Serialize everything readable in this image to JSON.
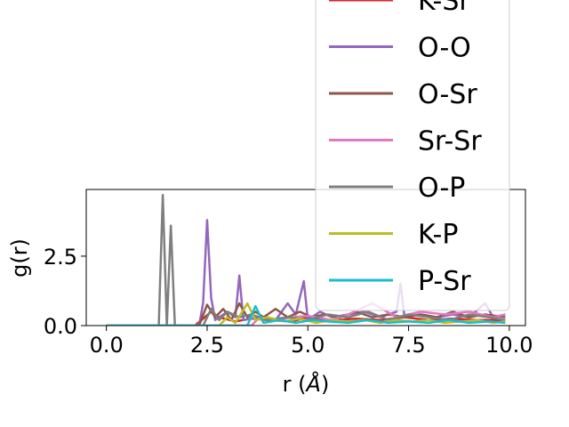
{
  "chart_data": {
    "type": "line",
    "title": "",
    "xlabel": "r (Å)",
    "ylabel": "g(r)",
    "xlim": [
      -0.5,
      10.4
    ],
    "ylim": [
      0,
      4.9
    ],
    "xticks": [
      0.0,
      2.5,
      5.0,
      7.5,
      10.0
    ],
    "xtick_labels": [
      "0.0",
      "2.5",
      "5.0",
      "7.5",
      "10.0"
    ],
    "yticks": [
      0.0,
      2.5
    ],
    "ytick_labels": [
      "0.0",
      "2.5"
    ],
    "grid": false,
    "legend_position": "upper-right",
    "series": [
      {
        "name": "K-Sr",
        "color": "#d62728",
        "x": [
          0.0,
          2.2,
          2.6,
          2.8,
          3.2,
          3.6,
          4.0,
          4.6,
          5.0,
          5.6,
          6.2,
          6.8,
          7.4,
          8.0,
          8.6,
          9.2,
          9.9
        ],
        "y": [
          0.0,
          0.0,
          0.5,
          0.3,
          0.15,
          0.25,
          0.2,
          0.15,
          0.3,
          0.2,
          0.25,
          0.2,
          0.3,
          0.2,
          0.25,
          0.2,
          0.2
        ]
      },
      {
        "name": "O-O",
        "color": "#9467bd",
        "x": [
          0.0,
          2.3,
          2.4,
          2.5,
          2.6,
          2.7,
          3.0,
          3.2,
          3.3,
          3.4,
          3.8,
          4.2,
          4.5,
          4.7,
          4.9,
          5.0,
          5.3,
          5.6,
          6.0,
          6.4,
          6.8,
          7.2,
          7.3,
          7.4,
          7.8,
          8.2,
          8.6,
          9.0,
          9.4,
          9.6,
          9.9
        ],
        "y": [
          0.0,
          0.0,
          0.8,
          3.8,
          1.0,
          0.2,
          0.5,
          0.3,
          1.8,
          0.2,
          0.3,
          0.2,
          0.8,
          0.4,
          1.6,
          0.2,
          0.5,
          0.3,
          0.4,
          0.5,
          0.3,
          0.5,
          1.5,
          0.3,
          0.4,
          0.3,
          0.4,
          0.3,
          0.8,
          0.3,
          0.4
        ]
      },
      {
        "name": "O-Sr",
        "color": "#8c564b",
        "x": [
          0.0,
          2.3,
          2.5,
          2.7,
          2.9,
          3.1,
          3.3,
          3.5,
          3.7,
          3.9,
          4.2,
          4.5,
          4.8,
          5.1,
          5.4,
          5.8,
          6.2,
          6.6,
          7.0,
          7.4,
          7.8,
          8.2,
          8.6,
          9.0,
          9.4,
          9.9
        ],
        "y": [
          0.0,
          0.0,
          0.75,
          0.3,
          0.6,
          0.2,
          0.8,
          0.3,
          0.5,
          0.3,
          0.6,
          0.3,
          0.5,
          0.3,
          0.4,
          0.3,
          0.5,
          0.3,
          0.4,
          0.3,
          0.4,
          0.3,
          0.5,
          0.3,
          0.4,
          0.3
        ]
      },
      {
        "name": "Sr-Sr",
        "color": "#e377c2",
        "x": [
          0.0,
          3.6,
          3.8,
          4.2,
          4.6,
          5.0,
          5.6,
          6.0,
          6.6,
          7.2,
          7.8,
          8.4,
          9.0,
          9.6,
          9.9
        ],
        "y": [
          0.0,
          0.0,
          0.3,
          0.2,
          0.3,
          0.35,
          0.2,
          0.4,
          0.8,
          0.3,
          0.5,
          0.4,
          0.5,
          0.3,
          0.4
        ]
      },
      {
        "name": "O-P",
        "color": "#7f7f7f",
        "x": [
          0.0,
          1.3,
          1.4,
          1.5,
          1.6,
          1.7,
          2.4,
          2.6,
          2.8,
          3.0,
          3.3,
          3.6,
          4.0,
          4.5,
          5.0,
          5.5,
          6.0,
          6.5,
          7.0,
          7.5,
          8.0,
          8.5,
          9.0,
          9.5,
          9.9
        ],
        "y": [
          0.0,
          0.0,
          4.7,
          0.0,
          3.6,
          0.0,
          0.0,
          0.6,
          0.2,
          0.5,
          0.3,
          0.4,
          0.2,
          0.3,
          0.2,
          0.4,
          0.3,
          0.5,
          0.2,
          0.4,
          0.3,
          0.2,
          0.4,
          0.3,
          0.2
        ]
      },
      {
        "name": "K-P",
        "color": "#bcbd22",
        "x": [
          0.0,
          2.8,
          3.0,
          3.2,
          3.5,
          3.7,
          4.0,
          4.4,
          4.8,
          5.2,
          5.6,
          6.0,
          6.4,
          6.8,
          7.2,
          7.6,
          8.0,
          8.4,
          8.8,
          9.2,
          9.6,
          9.9
        ],
        "y": [
          0.0,
          0.0,
          0.3,
          0.1,
          0.8,
          0.2,
          0.3,
          0.15,
          0.25,
          0.1,
          0.2,
          0.15,
          0.2,
          0.1,
          0.2,
          0.15,
          0.2,
          0.1,
          0.15,
          0.2,
          0.1,
          0.15
        ]
      },
      {
        "name": "P-Sr",
        "color": "#17becf",
        "x": [
          0.0,
          3.5,
          3.7,
          3.9,
          4.3,
          4.7,
          5.1,
          5.5,
          6.0,
          6.5,
          7.0,
          7.5,
          8.0,
          8.5,
          9.0,
          9.5,
          9.9
        ],
        "y": [
          0.0,
          0.0,
          0.7,
          0.1,
          0.2,
          0.1,
          0.2,
          0.15,
          0.1,
          0.2,
          0.1,
          0.15,
          0.1,
          0.2,
          0.1,
          0.15,
          0.1
        ]
      }
    ]
  }
}
